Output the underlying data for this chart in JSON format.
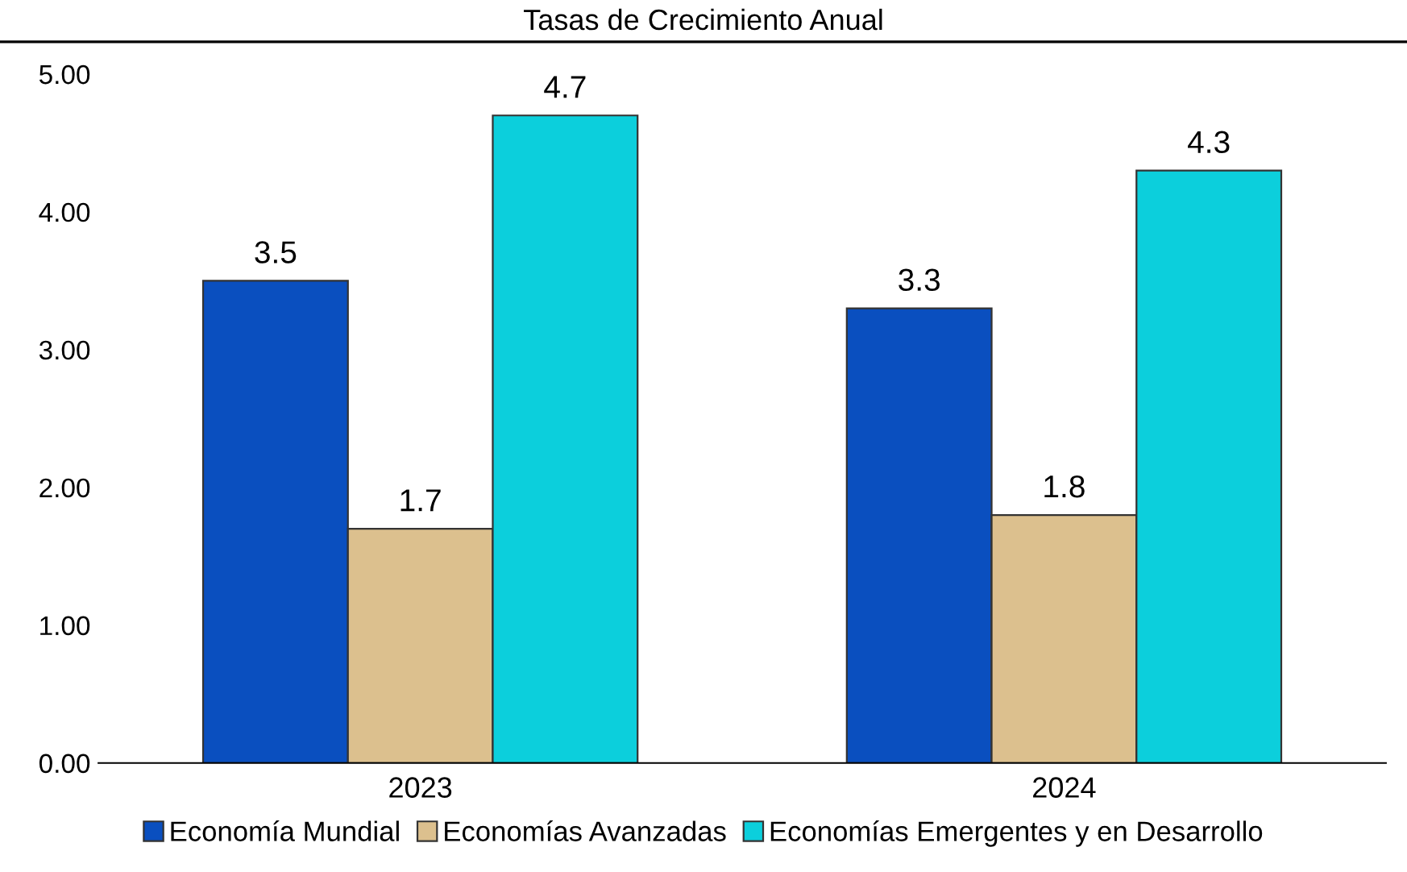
{
  "chart_data": {
    "type": "bar",
    "title": "Tasas de Crecimiento Anual",
    "categories": [
      "2023",
      "2024"
    ],
    "series": [
      {
        "name": "Economía Mundial",
        "color": "#0a4fbf",
        "values": [
          3.5,
          3.3
        ]
      },
      {
        "name": "Economías Avanzadas",
        "color": "#dcc08e",
        "values": [
          1.7,
          1.8
        ]
      },
      {
        "name": "Economías Emergentes y en Desarrollo",
        "color": "#0ccfdc",
        "values": [
          4.7,
          4.3
        ]
      }
    ],
    "ylim": [
      0,
      5
    ],
    "yticks": [
      {
        "value": 0,
        "label": "0.00"
      },
      {
        "value": 1,
        "label": "1.00"
      },
      {
        "value": 2,
        "label": "2.00"
      },
      {
        "value": 3,
        "label": "3.00"
      },
      {
        "value": 4,
        "label": "4.00"
      },
      {
        "value": 5,
        "label": "5.00"
      }
    ],
    "data_labels": true,
    "grid": false,
    "legend": "bottom"
  }
}
